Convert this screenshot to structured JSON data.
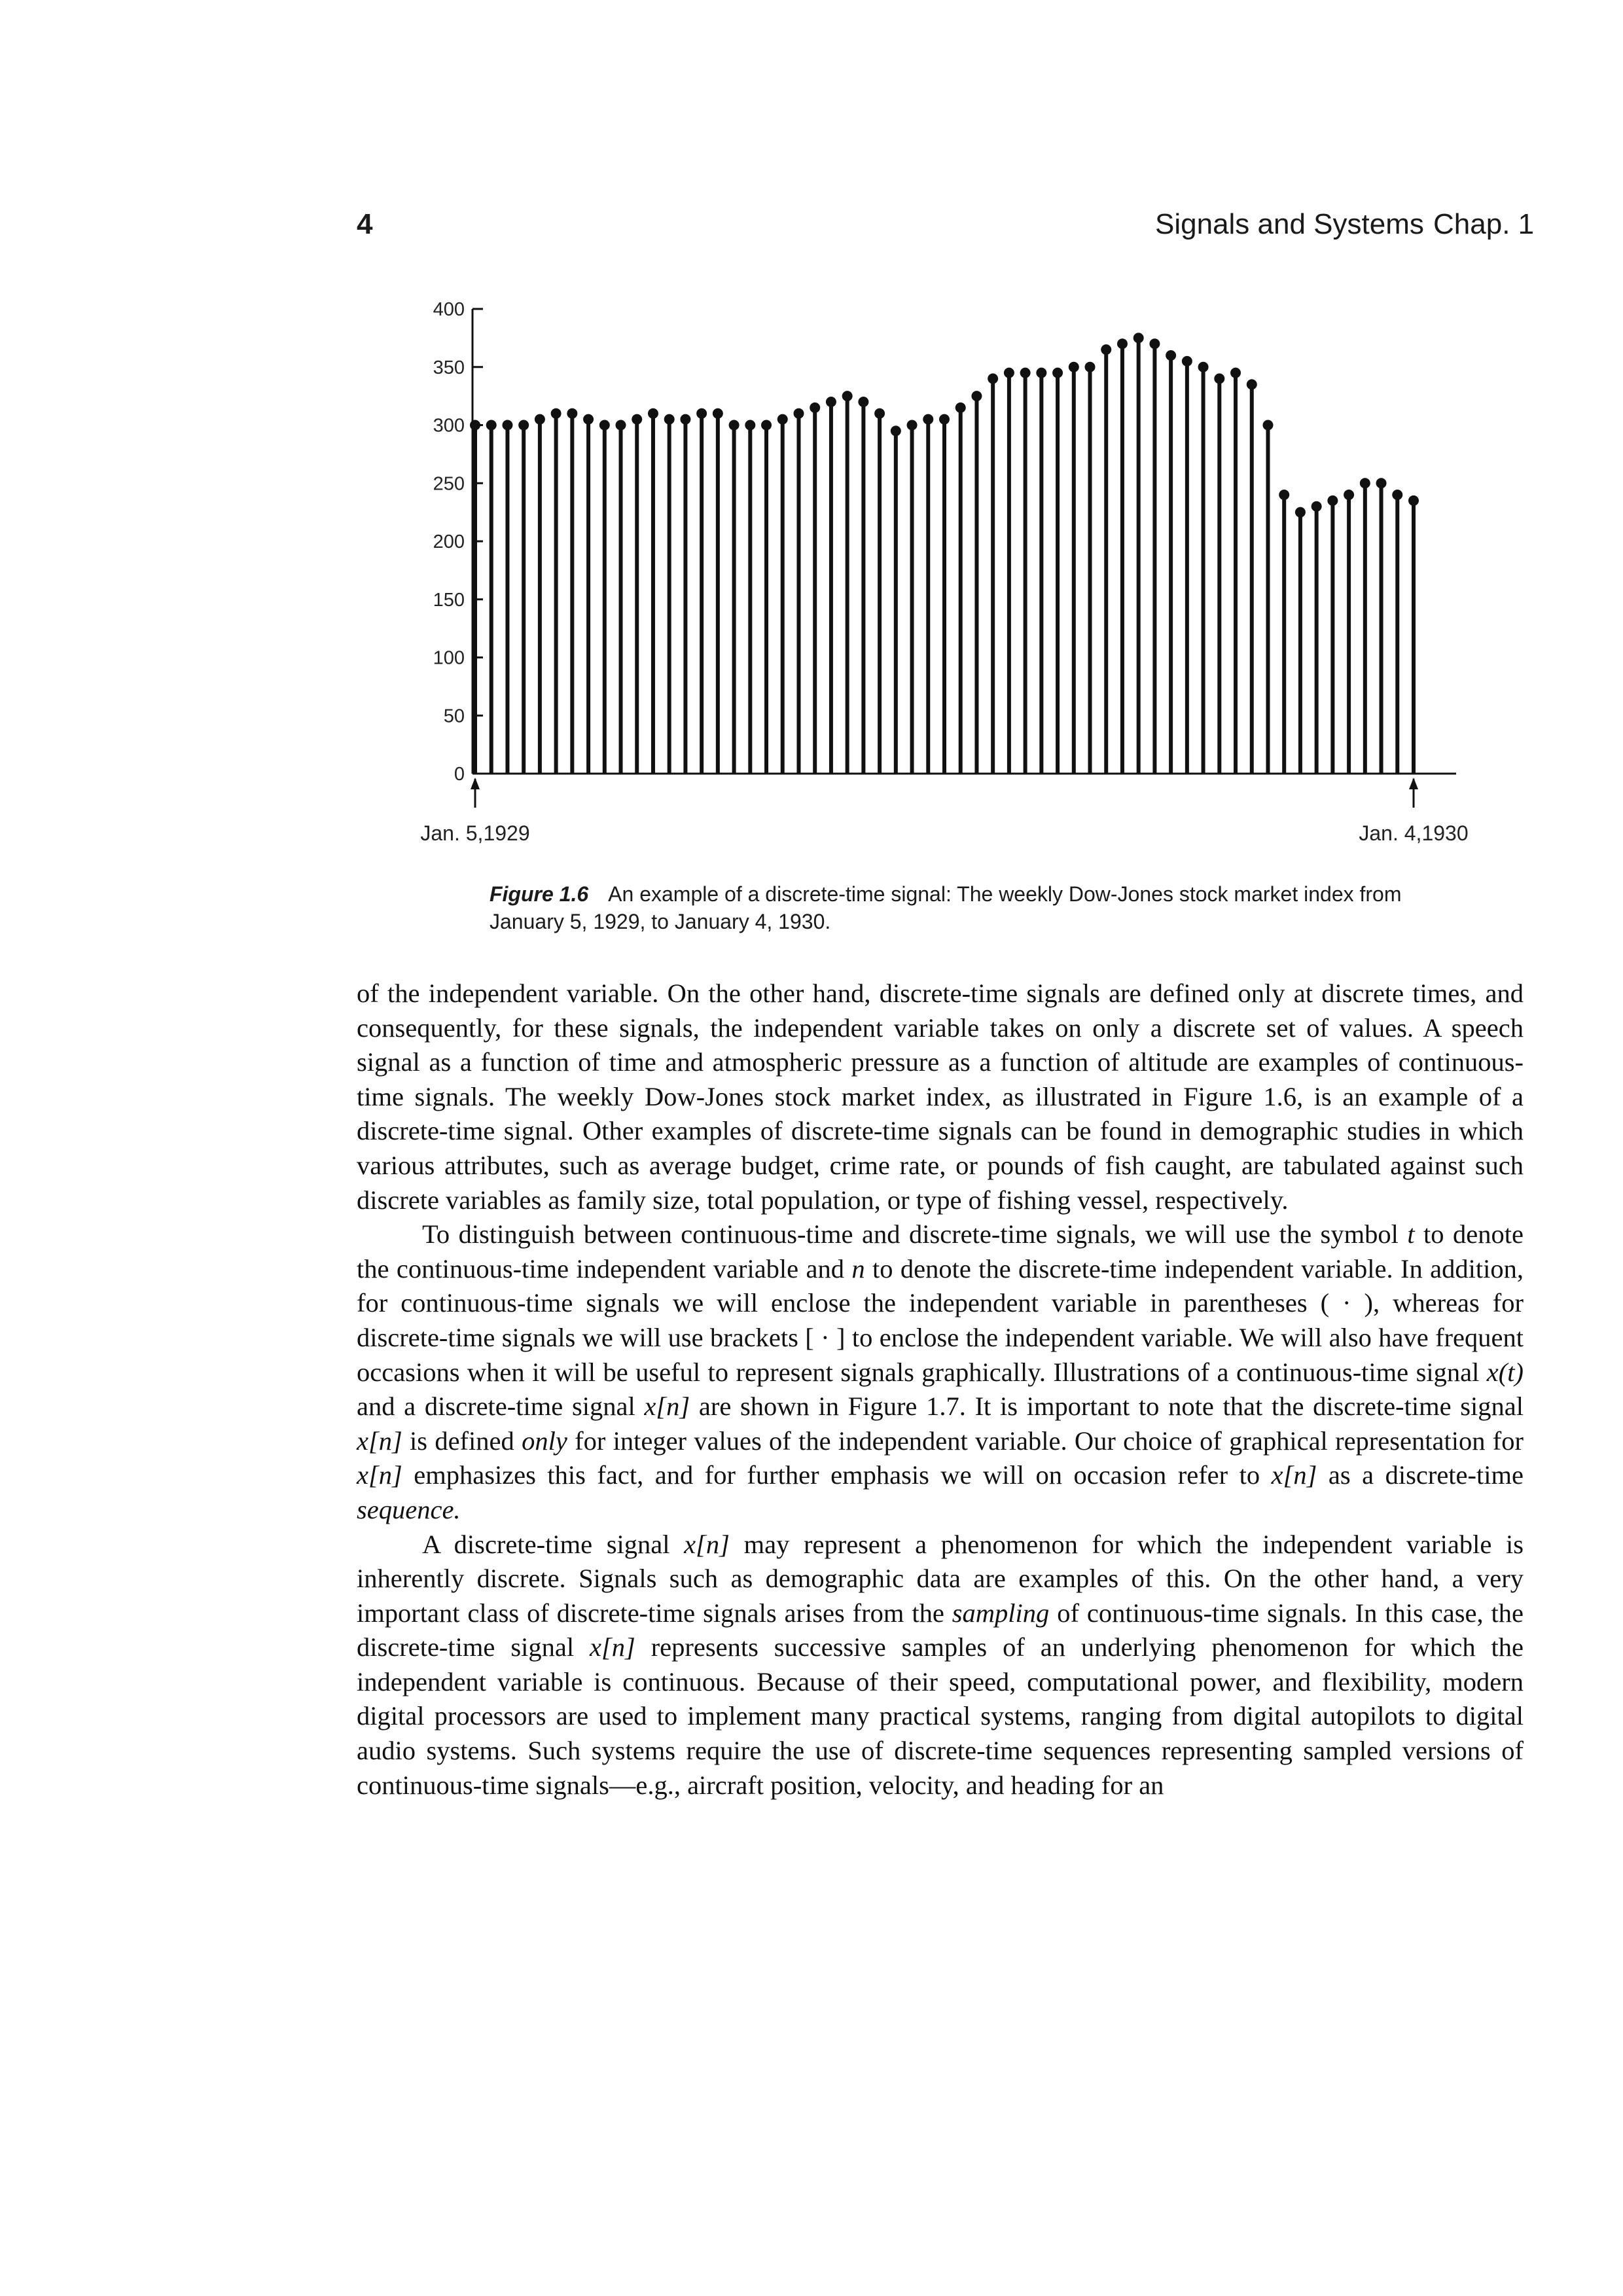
{
  "header": {
    "page_number": "4",
    "running_title": "Signals and Systems",
    "chapter": "Chap. 1"
  },
  "chart_data": {
    "type": "stem",
    "yticks": [
      0,
      50,
      100,
      150,
      200,
      250,
      300,
      350,
      400
    ],
    "ylim": [
      0,
      400
    ],
    "x_start_label": "Jan. 5,1929",
    "x_end_label": "Jan. 4,1930",
    "values": [
      300,
      300,
      300,
      300,
      305,
      310,
      310,
      305,
      300,
      300,
      305,
      310,
      305,
      305,
      310,
      310,
      300,
      300,
      300,
      305,
      310,
      315,
      320,
      325,
      320,
      310,
      295,
      300,
      305,
      305,
      315,
      325,
      340,
      345,
      345,
      345,
      345,
      350,
      350,
      365,
      370,
      375,
      370,
      360,
      355,
      350,
      340,
      345,
      335,
      300,
      240,
      225,
      230,
      235,
      240,
      250,
      250,
      240,
      235
    ]
  },
  "caption": {
    "label": "Figure 1.6",
    "text": "An example of a discrete-time signal: The weekly Dow-Jones stock market index from January 5, 1929, to January 4, 1930."
  },
  "body": {
    "p1": [
      {
        "t": "of the independent variable. On the other hand, discrete-time signals are defined only at discrete times, and consequently, for these signals, the independent variable takes on only a discrete set of values. A speech signal as a function of time and atmospheric pressure as a function of altitude are examples of continuous-time signals. The weekly Dow-Jones stock market index, as illustrated in Figure 1.6, is an example of a discrete-time signal. Other examples of discrete-time signals can be found in demographic studies in which various attributes, such as average budget, crime rate, or pounds of fish caught, are tabulated against such discrete variables as family size, total population, or type of fishing vessel, respectively."
      }
    ],
    "p2": [
      {
        "t": "To distinguish between continuous-time and discrete-time signals, we will use the symbol "
      },
      {
        "t": "t",
        "i": true
      },
      {
        "t": " to denote the continuous-time independent variable and "
      },
      {
        "t": "n",
        "i": true
      },
      {
        "t": " to denote the discrete-time independent variable. In addition, for continuous-time signals we will enclose the independent variable in parentheses ( · ), whereas for discrete-time signals we will use brackets [ · ] to enclose the independent variable. We will also have frequent occasions when it will be useful to represent signals graphically. Illustrations of a continuous-time signal "
      },
      {
        "t": "x(t)",
        "i": true
      },
      {
        "t": " and a discrete-time signal "
      },
      {
        "t": "x[n]",
        "i": true
      },
      {
        "t": " are shown in Figure 1.7. It is important to note that the discrete-time signal "
      },
      {
        "t": "x[n]",
        "i": true
      },
      {
        "t": " is defined "
      },
      {
        "t": "only",
        "i": true
      },
      {
        "t": " for integer values of the independent variable. Our choice of graphical representation for "
      },
      {
        "t": "x[n]",
        "i": true
      },
      {
        "t": " emphasizes this fact, and for further emphasis we will on occasion refer to "
      },
      {
        "t": "x[n]",
        "i": true
      },
      {
        "t": " as a discrete-time "
      },
      {
        "t": "sequence.",
        "i": true
      }
    ],
    "p3": [
      {
        "t": "A discrete-time signal "
      },
      {
        "t": "x[n]",
        "i": true
      },
      {
        "t": " may represent a phenomenon for which the independent variable is inherently discrete. Signals such as demographic data are examples of this. On the other hand, a very important class of discrete-time signals arises from the "
      },
      {
        "t": "sampling",
        "i": true
      },
      {
        "t": " of continuous-time signals. In this case, the discrete-time signal "
      },
      {
        "t": "x[n]",
        "i": true
      },
      {
        "t": " represents successive samples of an underlying phenomenon for which the independent variable is continuous. Because of their speed, computational power, and flexibility, modern digital processors are used to implement many practical systems, ranging from digital autopilots to digital audio systems. Such systems require the use of discrete-time sequences representing sampled versions of continuous-time signals—e.g., aircraft position, velocity, and heading for an"
      }
    ]
  }
}
